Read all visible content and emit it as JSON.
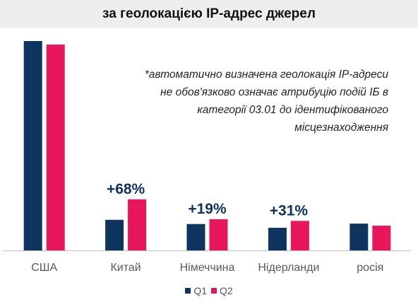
{
  "title": "за геолокацією IP-адрес джерел",
  "note": [
    "*автоматично визначена геолокація IP-адреси",
    "не обов'язково означає атрибуцію подій ІБ в",
    "категорії 03.01 до ідентифікованого",
    "місцезнаходження"
  ],
  "colors": {
    "q1": "#0f3460",
    "q2": "#e8175d",
    "axis": "#bfbfbf",
    "label": "#595959",
    "annotation": "#0f3460"
  },
  "chart_data": {
    "type": "bar",
    "categories": [
      "США",
      "Китай",
      "Німеччина",
      "Нідерланди",
      "росія"
    ],
    "series": [
      {
        "name": "Q1",
        "values": [
          100,
          14.6,
          12.6,
          10.8,
          12.8
        ]
      },
      {
        "name": "Q2",
        "values": [
          98.3,
          24.4,
          14.9,
          14.1,
          11.8
        ]
      }
    ],
    "annotations": [
      "",
      "+68%",
      "+19%",
      "+31%",
      ""
    ],
    "ylim": [
      0,
      100
    ],
    "grid": false,
    "legend": "bottom-center"
  }
}
